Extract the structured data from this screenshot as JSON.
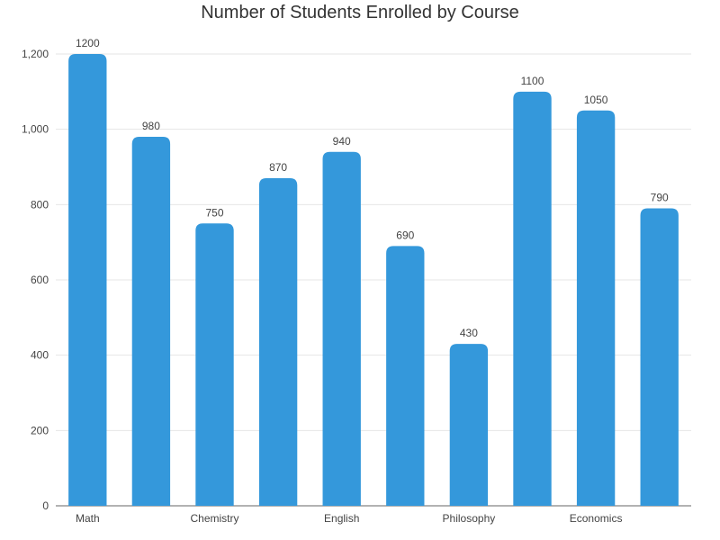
{
  "chart_data": {
    "type": "bar",
    "title": "Number of Students Enrolled by Course",
    "xlabel": "",
    "ylabel": "",
    "categories": [
      "Math",
      "",
      "Chemistry",
      "",
      "English",
      "",
      "Philosophy",
      "",
      "Economics",
      ""
    ],
    "values": [
      1200,
      980,
      750,
      870,
      940,
      690,
      430,
      1100,
      1050,
      790
    ],
    "ylim": [
      0,
      1200
    ],
    "yticks": [
      0,
      200,
      400,
      600,
      800,
      "1,000",
      "1,200"
    ],
    "grid": true,
    "legend": "none",
    "bar_color": "#3498db",
    "show_data_labels": true
  }
}
